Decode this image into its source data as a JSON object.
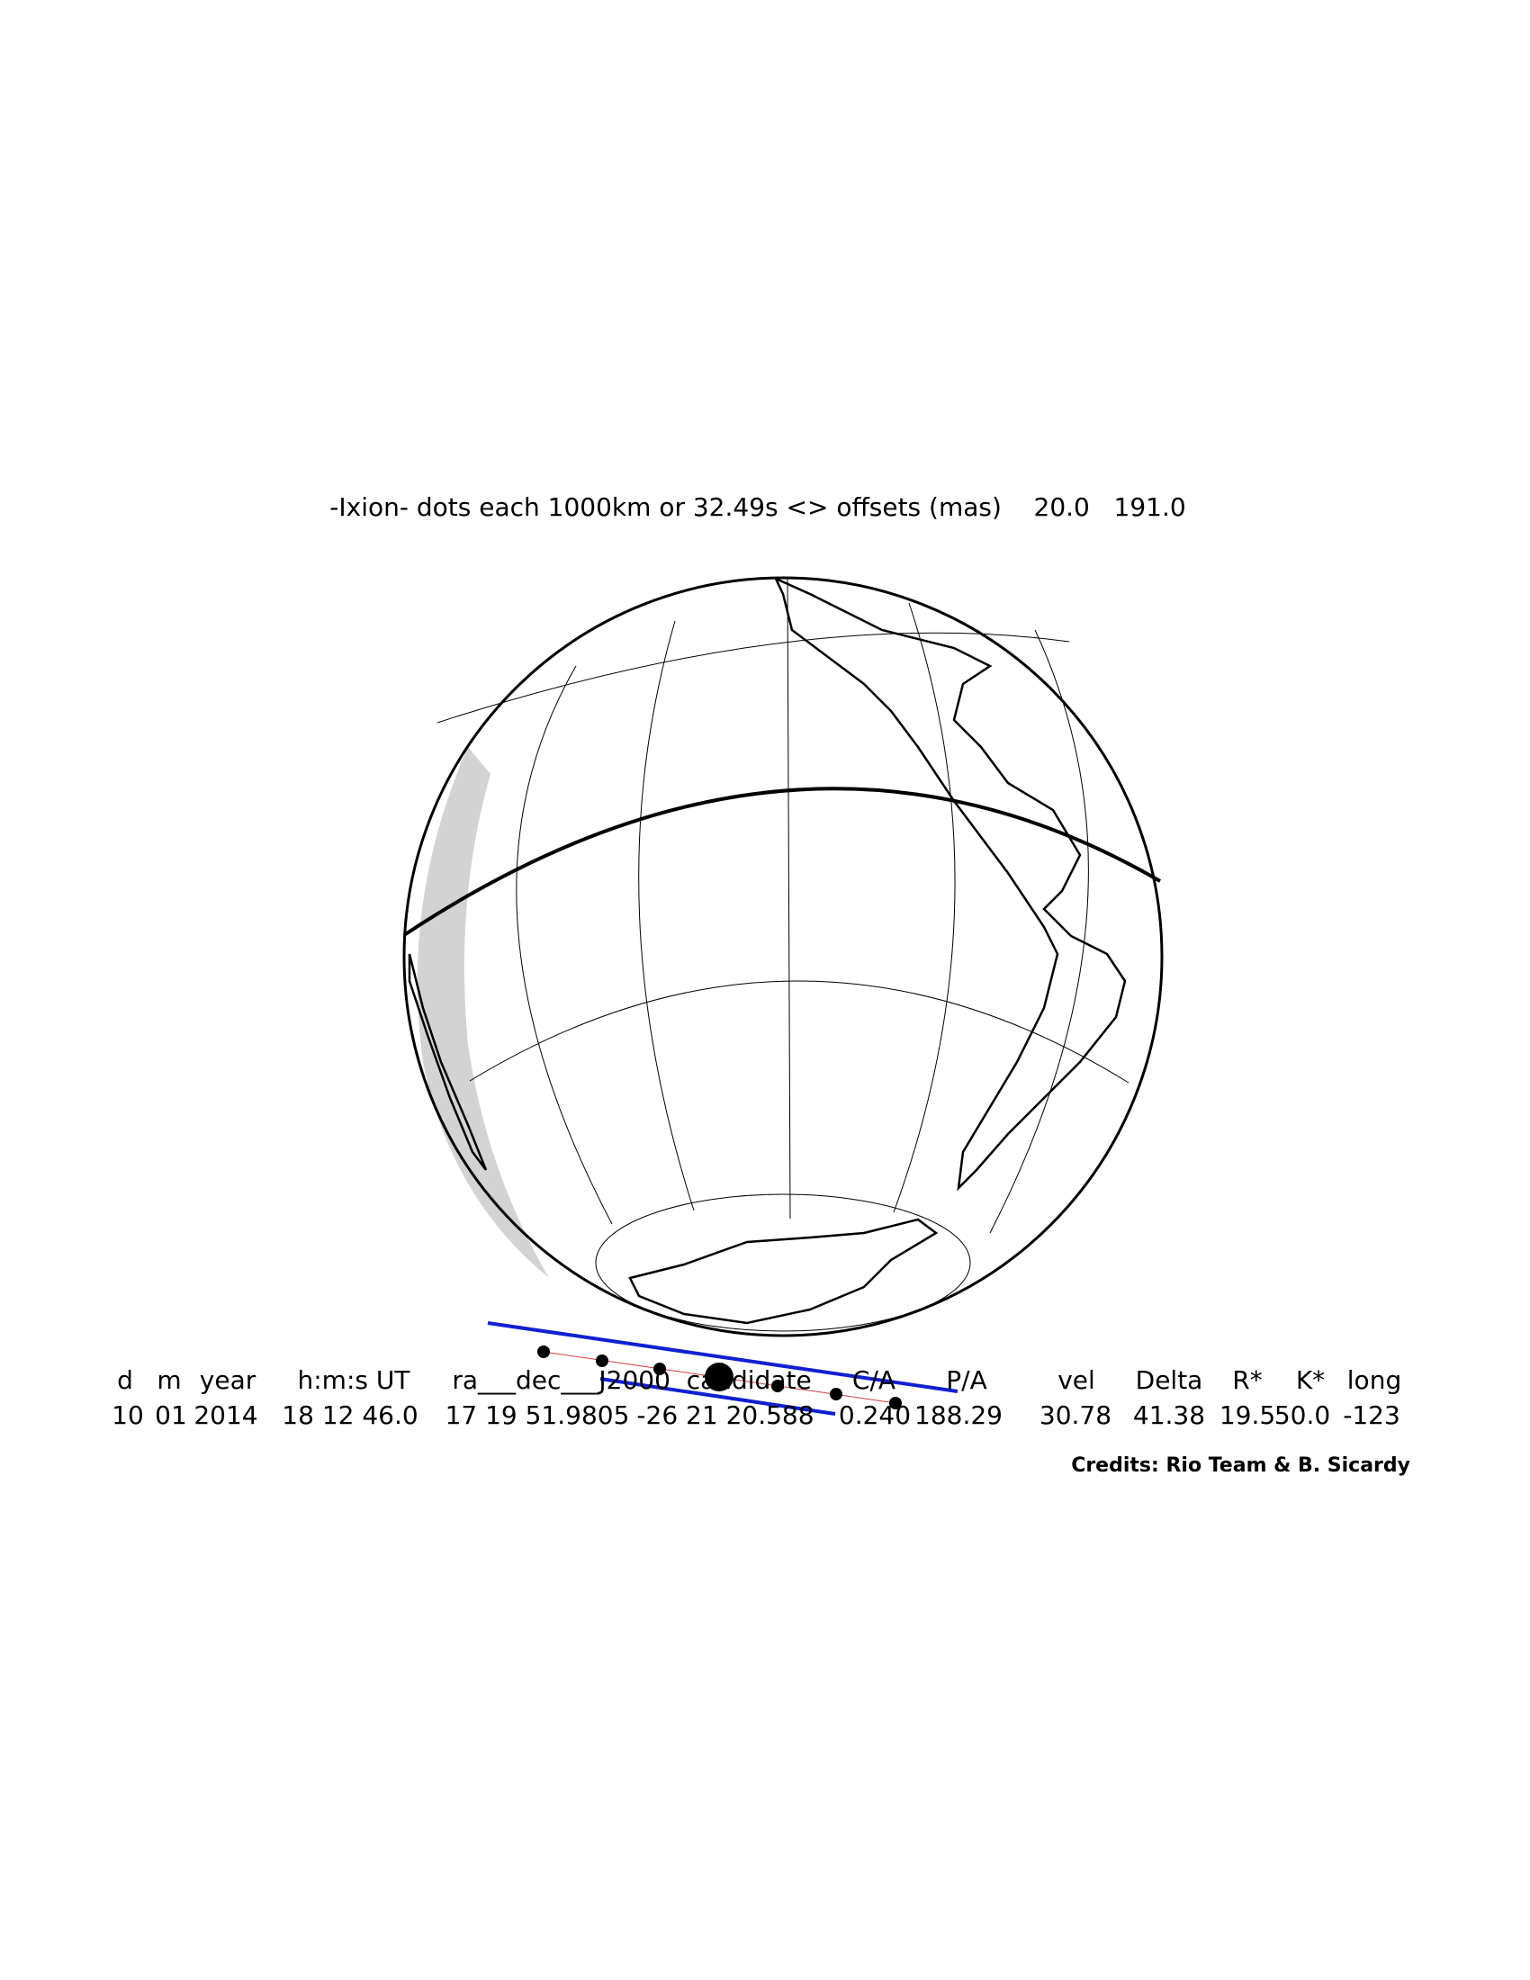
{
  "title": "-Ixion- dots each 1000km or 32.49s <> offsets (mas)    20.0   191.0",
  "table": {
    "headers": [
      "d",
      "m",
      "year",
      "h:m:s UT",
      "ra___dec___J2000  candidate",
      "C/A",
      "P/A",
      "vel",
      "Delta",
      "R*",
      "K*",
      "long"
    ],
    "values": [
      "10",
      "01",
      "2014",
      "18 12 46.0",
      "17 19 51.9805",
      "-26 21 20.588",
      "0.240",
      "188.29",
      "30.78",
      "41.38",
      "19.5",
      "50.0",
      "-123"
    ]
  },
  "credits": "Credits: Rio Team & B. Sicardy"
}
